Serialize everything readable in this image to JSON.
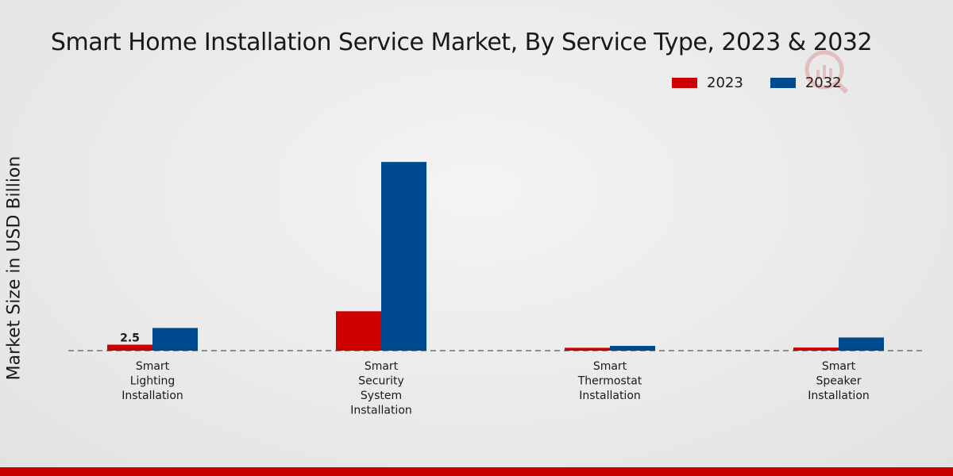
{
  "chart_data": {
    "type": "bar",
    "title": "Smart Home Installation Service Market, By Service Type, 2023 & 2032",
    "xlabel": "",
    "ylabel": "Market Size in USD Billion",
    "categories": [
      [
        "Smart",
        "Lighting",
        "Installation"
      ],
      [
        "Smart",
        "Security",
        "System",
        "Installation"
      ],
      [
        "Smart",
        "Thermostat",
        "Installation"
      ],
      [
        "Smart",
        "Speaker",
        "Installation"
      ]
    ],
    "series": [
      {
        "name": "2023",
        "color": "#cc0000",
        "values": [
          2.5,
          16.5,
          1.2,
          1.3
        ]
      },
      {
        "name": "2032",
        "color": "#004a8f",
        "values": [
          9.5,
          79.0,
          2.0,
          5.5
        ]
      }
    ],
    "data_labels": [
      {
        "series": 0,
        "index": 0,
        "text": "2.5"
      }
    ],
    "ylim": [
      0,
      100
    ],
    "grid": false,
    "legend": "top-right"
  }
}
